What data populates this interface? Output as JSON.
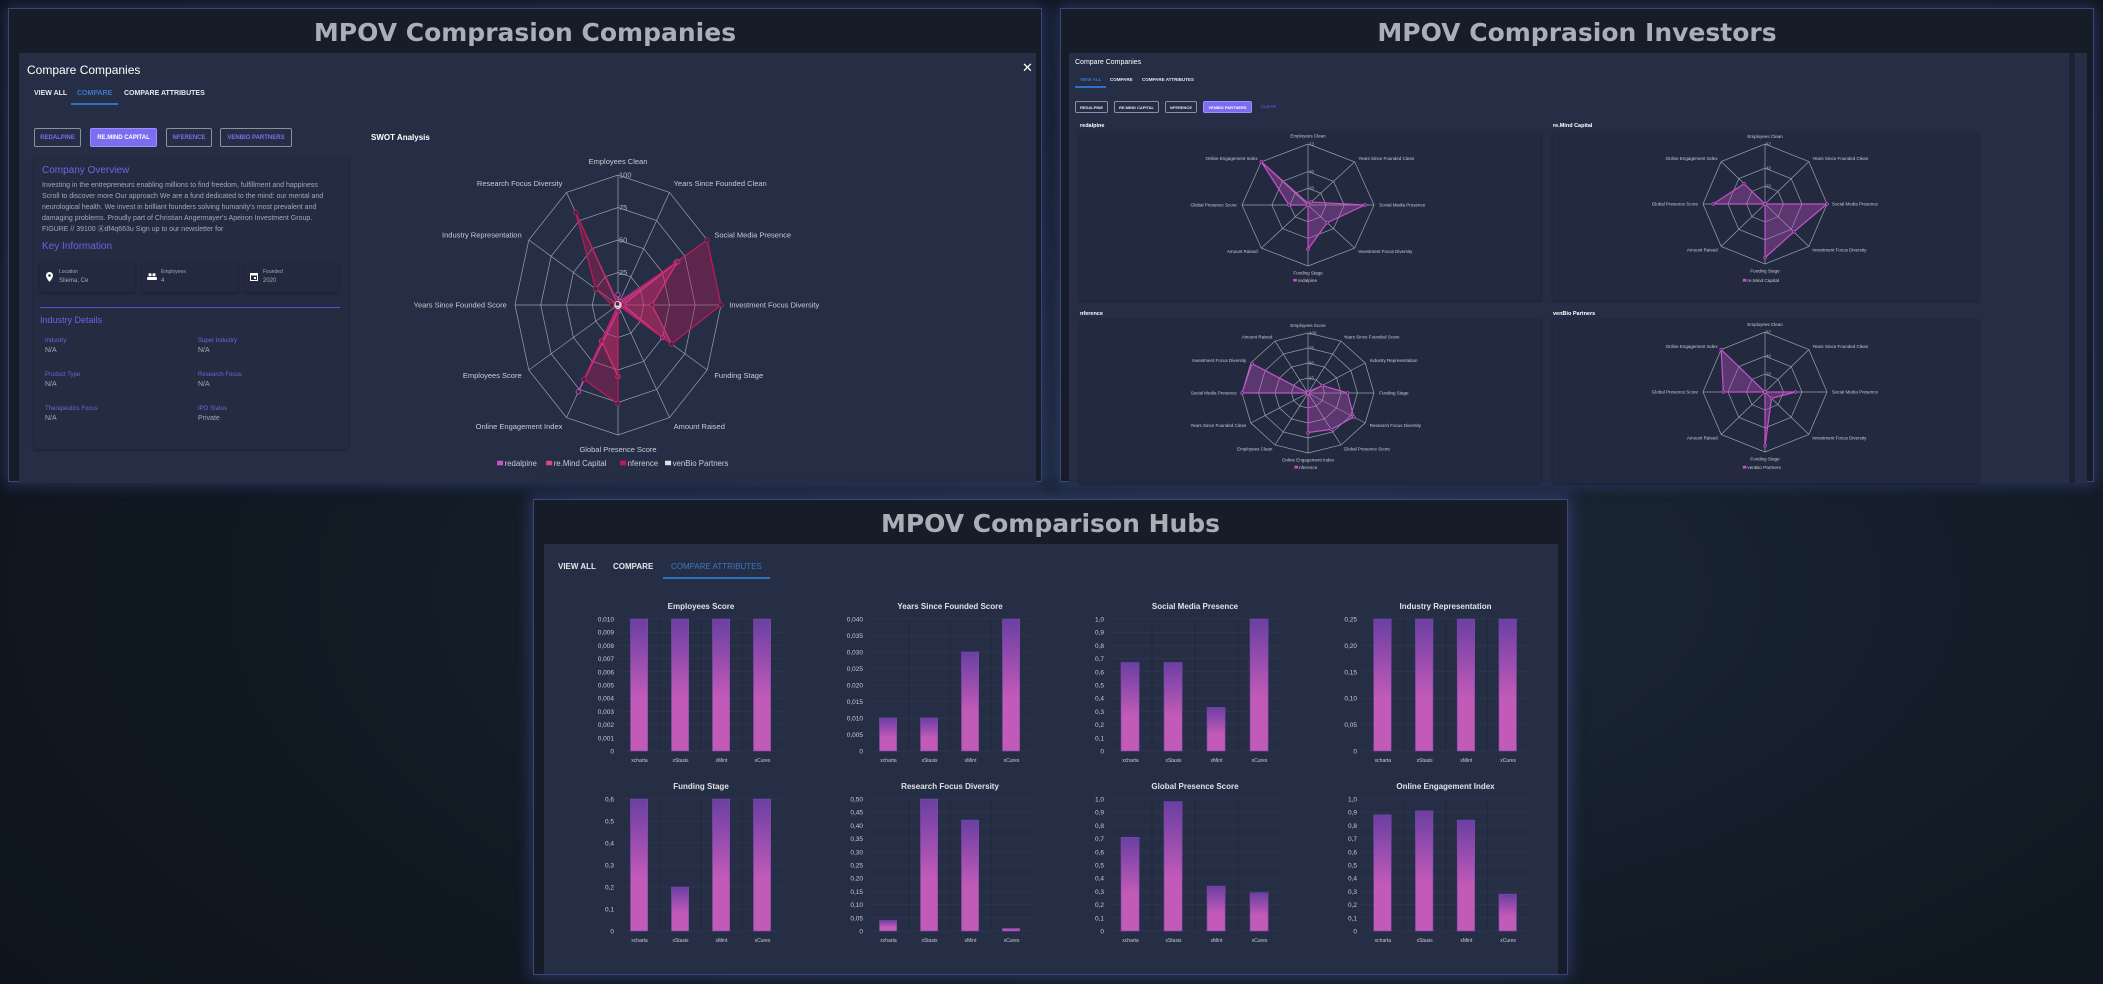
{
  "companies_panel": {
    "title": "MPOV Comprasion Companies",
    "dialog_title": "Compare Companies",
    "close_icon": "close-icon",
    "tabs": [
      "VIEW ALL",
      "COMPARE",
      "COMPARE ATTRIBUTES"
    ],
    "active_tab": "COMPARE",
    "company_buttons": [
      "REDALPINE",
      "RE.MIND CAPITAL",
      "NFERENCE",
      "VENBIO PARTNERS"
    ],
    "selected_company": "RE.MIND CAPITAL",
    "overview_heading": "Company Overview",
    "overview_lines": [
      "Investing in the entrepreneurs enabling millions to find freedom, fulfillment and happiness",
      "Scroll to discover more Our approach We are a fund dedicated to the mind: our mental and",
      "neurological health. We invest in brilliant founders solving humanity's most prevalent and",
      "damaging problems. Proudly part of Christian Angermayer's Apeiron Investment Group.",
      "FIGURE // 39100 Ⓐdf4q663u Sign up to our newsletter for"
    ],
    "key_info_heading": "Key Information",
    "key_info": [
      {
        "label": "Location",
        "value": "Sliema, Ce",
        "icon": "location-pin-icon"
      },
      {
        "label": "Employees",
        "value": "4",
        "icon": "people-icon"
      },
      {
        "label": "Founded",
        "value": "2020",
        "icon": "calendar-icon"
      }
    ],
    "industry_heading": "Industry Details",
    "industry_details": [
      {
        "label": "Industry",
        "value": "N/A"
      },
      {
        "label": "Super Industry",
        "value": "N/A"
      },
      {
        "label": "Product Type",
        "value": "N/A"
      },
      {
        "label": "Research Focus",
        "value": "N/A"
      },
      {
        "label": "Therapeutics Focus",
        "value": "N/A"
      },
      {
        "label": "IPO Status",
        "value": "Private"
      }
    ],
    "swot_title": "SWOT Analysis"
  },
  "investors_panel": {
    "title": "MPOV Comprasion Investors",
    "dialog_title": "Compare Companies",
    "tabs": [
      "VIEW ALL",
      "COMPARE",
      "COMPARE ATTRIBUTES"
    ],
    "active_tab": "VIEW ALL",
    "investor_buttons": [
      "REDALPINE",
      "RE.MIND CAPITAL",
      "NFERENCE",
      "VENBIO PARTNERS"
    ],
    "selected_investor": "VENBIO PARTNERS",
    "clear_label": "CLEAR",
    "card_titles": [
      "redalpine",
      "re.Mind Capital",
      "nference",
      "venBio Partners"
    ]
  },
  "hubs_panel": {
    "title": "MPOV Comparison Hubs",
    "tabs": [
      "VIEW ALL",
      "COMPARE",
      "COMPARE ATTRIBUTES"
    ],
    "active_tab": "COMPARE ATTRIBUTES"
  },
  "chart_data": [
    {
      "type": "radar",
      "title": "SWOT Analysis",
      "axes": [
        "Employees Clean",
        "Years Since Founded Clean",
        "Social Media Presence",
        "Investment Focus Diversity",
        "Funding Stage",
        "Amount Raised",
        "Global Presence Score",
        "Online Engagement Index",
        "Employees Score",
        "Years Since Founded Score",
        "Industry Representation",
        "Research Focus Diversity"
      ],
      "ticks": [
        25,
        50,
        75,
        100
      ],
      "max": 100,
      "legend": "bottom",
      "series": [
        {
          "name": "redalpine",
          "color": "#c651c9",
          "values": [
            8,
            3,
            65,
            5,
            50,
            0,
            5,
            77,
            0,
            0,
            0,
            0
          ]
        },
        {
          "name": "re.Mind Capital",
          "color": "#e0457b",
          "values": [
            2,
            2,
            67,
            33,
            60,
            0,
            55,
            32,
            0,
            2,
            2,
            2
          ]
        },
        {
          "name": "nference",
          "color": "#c2185b",
          "values": [
            2,
            2,
            100,
            100,
            60,
            0,
            76,
            66,
            0,
            6,
            25,
            82
          ]
        },
        {
          "name": "venBio Partners",
          "color": "#e0e0e0",
          "values": [
            1,
            1,
            1,
            1,
            1,
            0,
            1,
            1,
            0,
            1,
            1,
            1
          ]
        }
      ]
    },
    {
      "type": "radar",
      "axes": [
        "Employees Clean",
        "Years Since Founded Clean",
        "Social Media Presence",
        "Investment Focus Diversity",
        "Funding Stage",
        "Amount Raised",
        "Global Presence Score",
        "Online Engagement Index"
      ],
      "ticks": [
        20,
        40,
        73
      ],
      "max": 73,
      "legend": "bottom",
      "series": [
        {
          "name": "redalpine",
          "color": "#c651c9",
          "values": [
            2,
            5,
            63,
            30,
            53,
            0,
            21,
            73
          ]
        }
      ]
    },
    {
      "type": "radar",
      "axes": [
        "Employees Clean",
        "Years Since Founded Clean",
        "Social Media Presence",
        "Investment Focus Diversity",
        "Funding Stage",
        "Amount Raised",
        "Global Presence Score",
        "Online Engagement Index"
      ],
      "ticks": [
        20,
        40,
        67
      ],
      "max": 67,
      "legend": "bottom",
      "series": [
        {
          "name": "re.Mind Capital",
          "color": "#c651c9",
          "values": [
            0,
            0,
            67,
            44,
            60,
            0,
            56,
            32
          ]
        }
      ]
    },
    {
      "type": "radar",
      "axes": [
        "Employees Score",
        "Years Since Founded Score",
        "Industry Representation",
        "Funding Stage",
        "Research Focus Diversity",
        "Global Presence Score",
        "Online Engagement Index",
        "Employees Clean",
        "Years Since Founded Clean",
        "Social Media Presence",
        "Investment Focus Diversity",
        "Amount Raised"
      ],
      "ticks": [
        25,
        50,
        75,
        100
      ],
      "max": 100,
      "legend": "bottom",
      "series": [
        {
          "name": "nference",
          "color": "#c651c9",
          "values": [
            0,
            3,
            25,
            60,
            80,
            70,
            66,
            0,
            0,
            100,
            98,
            0
          ]
        }
      ]
    },
    {
      "type": "radar",
      "axes": [
        "Employees Clean",
        "Years Since Founded Clean",
        "Social Media Presence",
        "Investment Focus Diversity",
        "Funding Stage",
        "Amount Raised",
        "Global Presence Score",
        "Online Engagement Index"
      ],
      "ticks": [
        20,
        40,
        67
      ],
      "max": 67,
      "legend": "bottom",
      "series": [
        {
          "name": "venBio Partners",
          "color": "#c651c9",
          "values": [
            0,
            0,
            33,
            10,
            60,
            0,
            45,
            67
          ]
        }
      ]
    },
    {
      "type": "bar",
      "title": "Employees Score",
      "categories": [
        "xcharta",
        "xStasis",
        "xMint",
        "xCures"
      ],
      "values": [
        0.01,
        0.01,
        0.01,
        0.01
      ],
      "ylim": [
        0,
        0.01
      ],
      "ystep": 0.001,
      "decimals": 3,
      "grid": true
    },
    {
      "type": "bar",
      "title": "Years Since Founded Score",
      "categories": [
        "xcharta",
        "xStasis",
        "xMint",
        "xCures"
      ],
      "values": [
        0.01,
        0.01,
        0.03,
        0.04
      ],
      "ylim": [
        0,
        0.04
      ],
      "ystep": 0.005,
      "decimals": 3,
      "grid": true
    },
    {
      "type": "bar",
      "title": "Social Media Presence",
      "categories": [
        "xcharta",
        "xStasis",
        "xMint",
        "xCures"
      ],
      "values": [
        0.67,
        0.67,
        0.33,
        1.0
      ],
      "ylim": [
        0,
        1
      ],
      "ystep": 0.1,
      "decimals": 1,
      "grid": true
    },
    {
      "type": "bar",
      "title": "Industry Representation",
      "categories": [
        "xcharta",
        "xStasis",
        "xMint",
        "xCures"
      ],
      "values": [
        0.25,
        0.25,
        0.25,
        0.25
      ],
      "ylim": [
        0,
        0.25
      ],
      "ystep": 0.05,
      "decimals": 2,
      "grid": true
    },
    {
      "type": "bar",
      "title": "Funding Stage",
      "categories": [
        "xcharta",
        "xStasis",
        "xMint",
        "xCures"
      ],
      "values": [
        0.6,
        0.2,
        0.6,
        0.6
      ],
      "ylim": [
        0,
        0.6
      ],
      "ystep": 0.1,
      "decimals": 1,
      "grid": true
    },
    {
      "type": "bar",
      "title": "Research Focus Diversity",
      "categories": [
        "xcharta",
        "xStasis",
        "xMint",
        "xCures"
      ],
      "values": [
        0.04,
        0.5,
        0.42,
        0.01
      ],
      "ylim": [
        0,
        0.5
      ],
      "ystep": 0.05,
      "decimals": 2,
      "grid": true
    },
    {
      "type": "bar",
      "title": "Global Presence Score",
      "categories": [
        "xcharta",
        "xStasis",
        "xMint",
        "xCures"
      ],
      "values": [
        0.71,
        0.98,
        0.34,
        0.29
      ],
      "ylim": [
        0,
        1
      ],
      "ystep": 0.1,
      "decimals": 1,
      "grid": true
    },
    {
      "type": "bar",
      "title": "Online Engagement Index",
      "categories": [
        "xcharta",
        "xStasis",
        "xMint",
        "xCures"
      ],
      "values": [
        0.88,
        0.91,
        0.84,
        0.28
      ],
      "ylim": [
        0,
        1
      ],
      "ystep": 0.1,
      "decimals": 1,
      "grid": true
    }
  ],
  "colors": {
    "accent": "#7b6cf0",
    "tab_active": "#3b78c8",
    "bar_top": "#6a3fa3",
    "bar_bottom": "#c25ab8"
  }
}
